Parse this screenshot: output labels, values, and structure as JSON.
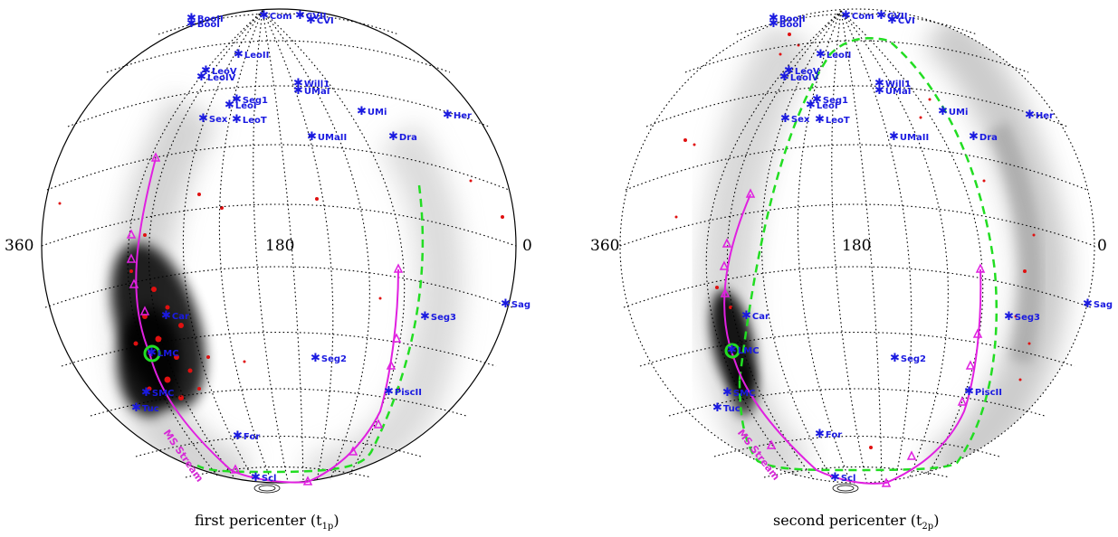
{
  "panels": [
    {
      "caption": "first pericenter (t",
      "caption_sub": "1p",
      "caption_close": ")",
      "axis_labels": {
        "left": "360",
        "center": "180",
        "right": "0"
      },
      "stream_label": "MS Stream"
    },
    {
      "caption": "second pericenter (t",
      "caption_sub": "2p",
      "caption_close": ")",
      "axis_labels": {
        "left": "360",
        "center": "180",
        "right": "0"
      },
      "stream_label": "MS Stream"
    }
  ],
  "satellites": [
    {
      "id": "BooII",
      "label": "BooII"
    },
    {
      "id": "BooI",
      "label": "BooI"
    },
    {
      "id": "Com",
      "label": "Com"
    },
    {
      "id": "CVII",
      "label": "CVII"
    },
    {
      "id": "CVI",
      "label": "CVI"
    },
    {
      "id": "LeoII",
      "label": "LeoII"
    },
    {
      "id": "LeoV",
      "label": "LeoV"
    },
    {
      "id": "LeoIV",
      "label": "LeoIV"
    },
    {
      "id": "Will1",
      "label": "Will1"
    },
    {
      "id": "UMaI",
      "label": "UMaI"
    },
    {
      "id": "Seg1",
      "label": "Seg1"
    },
    {
      "id": "LeoI",
      "label": "LeoI"
    },
    {
      "id": "Sex",
      "label": "Sex"
    },
    {
      "id": "LeoT",
      "label": "LeoT"
    },
    {
      "id": "UMi",
      "label": "UMi"
    },
    {
      "id": "Her",
      "label": "Her"
    },
    {
      "id": "UMaII",
      "label": "UMaII"
    },
    {
      "id": "Dra",
      "label": "Dra"
    },
    {
      "id": "Sag",
      "label": "Sag"
    },
    {
      "id": "Seg3",
      "label": "Seg3"
    },
    {
      "id": "Car",
      "label": "Car"
    },
    {
      "id": "LMC",
      "label": "LMC"
    },
    {
      "id": "Seg2",
      "label": "Seg2"
    },
    {
      "id": "SMC",
      "label": "SMC"
    },
    {
      "id": "PiscII",
      "label": "PiscII"
    },
    {
      "id": "Tuc",
      "label": "Tuc"
    },
    {
      "id": "For",
      "label": "For"
    },
    {
      "id": "Scl",
      "label": "Scl"
    }
  ],
  "colors": {
    "satellite": "#1a1ae0",
    "orbit": "#e020e0",
    "dashed_orbit": "#22dd22",
    "particles_dense": "#000000",
    "particles_sparse": "#9a9a9a",
    "red_particles": "#e01010",
    "grid": "#000000"
  }
}
